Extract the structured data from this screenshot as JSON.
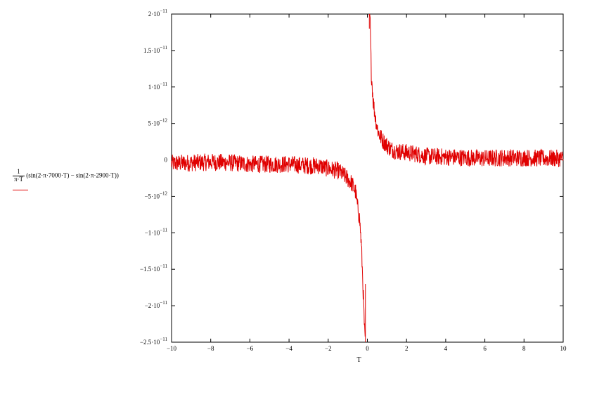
{
  "legend": {
    "numerator": "1",
    "denominator": "π·T",
    "expression": "(sin(2·π·7000·T) − sin(2·π·2900·T))",
    "color": "#e00000"
  },
  "chart_data": {
    "type": "line",
    "xlabel": "T",
    "ylabel": "",
    "xlim": [
      -10,
      10
    ],
    "ylim": [
      -2.5e-11,
      2e-11
    ],
    "x_ticks": [
      -10,
      -8,
      -6,
      -4,
      -2,
      0,
      2,
      4,
      6,
      8,
      10
    ],
    "y_ticks": [
      {
        "value": 2e-11,
        "mant": "2·10",
        "exp": "−11"
      },
      {
        "value": 1.5e-11,
        "mant": "1.5·10",
        "exp": "−11"
      },
      {
        "value": 1e-11,
        "mant": "1·10",
        "exp": "−11"
      },
      {
        "value": 5e-12,
        "mant": "5·10",
        "exp": "−12"
      },
      {
        "value": 0,
        "mant": "0",
        "exp": ""
      },
      {
        "value": -5e-12,
        "mant": "−5·10",
        "exp": "−12"
      },
      {
        "value": -1e-11,
        "mant": "−1·10",
        "exp": "−11"
      },
      {
        "value": -1.5e-11,
        "mant": "−1.5·10",
        "exp": "−11"
      },
      {
        "value": -2e-11,
        "mant": "−2·10",
        "exp": "−11"
      },
      {
        "value": -2.5e-11,
        "mant": "−2.5·10",
        "exp": "−11"
      }
    ],
    "grid": false,
    "series": [
      {
        "color": "#e00000",
        "x": [
          -10,
          -9,
          -8,
          -7,
          -6,
          -5,
          -4,
          -3,
          -2.5,
          -2,
          -1.5,
          -1.2,
          -1,
          -0.8,
          -0.6,
          -0.5,
          -0.4,
          -0.3,
          -0.2,
          -0.15,
          -0.1,
          0.1,
          0.15,
          0.2,
          0.3,
          0.4,
          0.5,
          0.6,
          0.8,
          1,
          1.2,
          1.5,
          2,
          2.5,
          3,
          4,
          5,
          6,
          7,
          8,
          9,
          10
        ],
        "y": [
          -5e-13,
          -4e-13,
          -3e-13,
          -4e-13,
          -6e-13,
          -6e-13,
          -6e-13,
          -8e-13,
          -8e-13,
          -1.2e-12,
          -1.5e-12,
          -2.1e-12,
          -2.6e-12,
          -3.2e-12,
          -4.4e-12,
          -6.5e-12,
          -8e-12,
          -1.2e-11,
          -1.9e-11,
          -2.3e-11,
          -2.6e-11,
          2.2e-11,
          1.8e-11,
          1.2e-11,
          8e-12,
          6e-12,
          4.5e-12,
          3.5e-12,
          2.6e-12,
          2e-12,
          1.5e-12,
          1.2e-12,
          1e-12,
          8e-13,
          5e-13,
          4e-13,
          3e-13,
          2e-13,
          3e-13,
          3e-13,
          2e-13,
          2e-13
        ]
      }
    ]
  }
}
